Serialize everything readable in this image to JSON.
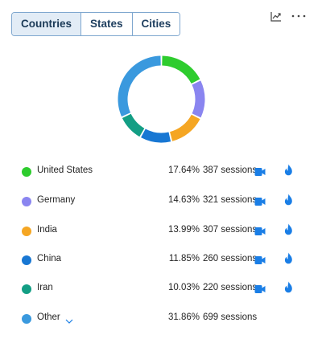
{
  "tabs": [
    {
      "label": "Countries",
      "active": true
    },
    {
      "label": "States",
      "active": false
    },
    {
      "label": "Cities",
      "active": false
    }
  ],
  "toolbar": {
    "trend_icon": "trend-chart-icon",
    "more_icon": "more-horizontal-icon"
  },
  "chart_data": {
    "type": "pie",
    "donut": true,
    "categories": [
      "United States",
      "Germany",
      "India",
      "China",
      "Iran",
      "Other"
    ],
    "values": [
      17.64,
      14.63,
      13.99,
      11.85,
      10.03,
      31.86
    ],
    "colors": [
      "#2ecc2e",
      "#8a85f0",
      "#f5a623",
      "#1877d3",
      "#139e84",
      "#3a99de"
    ]
  },
  "rows": [
    {
      "name": "United States",
      "percent": "17.64%",
      "sessions": "387 sessions",
      "color": "#2ecc2e",
      "video_icon": "video-camera-icon",
      "flame_icon": "flame-icon"
    },
    {
      "name": "Germany",
      "percent": "14.63%",
      "sessions": "321 sessions",
      "color": "#8a85f0",
      "video_icon": "video-camera-icon",
      "flame_icon": "flame-icon"
    },
    {
      "name": "India",
      "percent": "13.99%",
      "sessions": "307 sessions",
      "color": "#f5a623",
      "video_icon": "video-camera-icon",
      "flame_icon": "flame-icon"
    },
    {
      "name": "China",
      "percent": "11.85%",
      "sessions": "260 sessions",
      "color": "#1877d3",
      "video_icon": "video-camera-icon",
      "flame_icon": "flame-icon"
    },
    {
      "name": "Iran",
      "percent": "10.03%",
      "sessions": "220 sessions",
      "color": "#139e84",
      "video_icon": "video-camera-icon",
      "flame_icon": "flame-icon"
    },
    {
      "name": "Other",
      "percent": "31.86%",
      "sessions": "699 sessions",
      "color": "#3a99de",
      "expand_icon": "chevron-down-icon"
    }
  ],
  "accent": "#1a7ee6"
}
